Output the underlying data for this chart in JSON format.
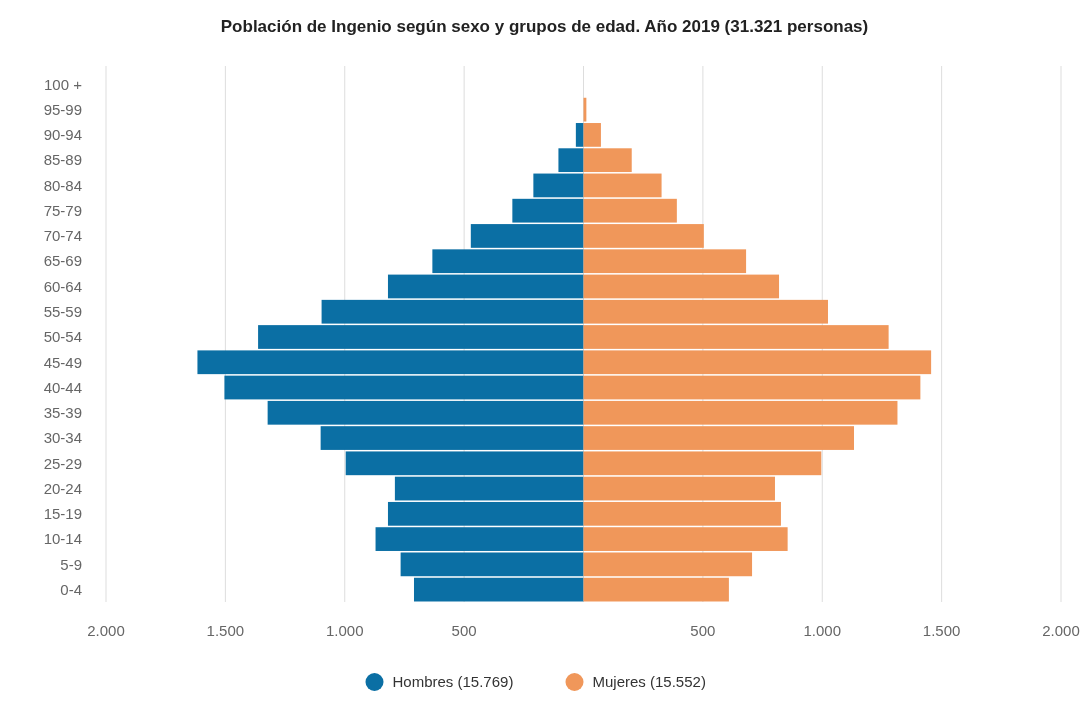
{
  "chart_data": {
    "type": "bar",
    "orientation": "horizontal",
    "stacked": true,
    "title": "Población de Ingenio según sexo y grupos de edad. Año 2019 (31.321 personas)",
    "categories": [
      "100 +",
      "95-99",
      "90-94",
      "85-89",
      "80-84",
      "75-79",
      "70-74",
      "65-69",
      "60-64",
      "55-59",
      "50-54",
      "45-49",
      "40-44",
      "35-39",
      "30-34",
      "25-29",
      "20-24",
      "15-19",
      "10-14",
      "5-9",
      "0-4"
    ],
    "series": [
      {
        "name": "Hombres (15.769)",
        "color": "#0b6fa4",
        "values": [
          0,
          0,
          -32,
          -105,
          -210,
          -298,
          -472,
          -633,
          -819,
          -1097,
          -1363,
          -1617,
          -1504,
          -1323,
          -1101,
          -996,
          -790,
          -819,
          -871,
          -766,
          -710
        ]
      },
      {
        "name": "Mujeres (15.552)",
        "color": "#f0975a",
        "values": [
          0,
          12,
          73,
          202,
          327,
          391,
          504,
          681,
          819,
          1024,
          1278,
          1456,
          1411,
          1315,
          1133,
          996,
          802,
          827,
          855,
          706,
          609
        ]
      }
    ],
    "xlim": [
      -2000,
      2000
    ],
    "xticks": [
      {
        "value": -2000,
        "label": "2.000"
      },
      {
        "value": -1500,
        "label": "1.500"
      },
      {
        "value": -1000,
        "label": "1.000"
      },
      {
        "value": -500,
        "label": "500"
      },
      {
        "value": 0,
        "label": null
      },
      {
        "value": 500,
        "label": "500"
      },
      {
        "value": 1000,
        "label": "1.000"
      },
      {
        "value": 1500,
        "label": "1.500"
      },
      {
        "value": 2000,
        "label": "2.000"
      }
    ],
    "grid": "x",
    "legend": "bottom"
  }
}
